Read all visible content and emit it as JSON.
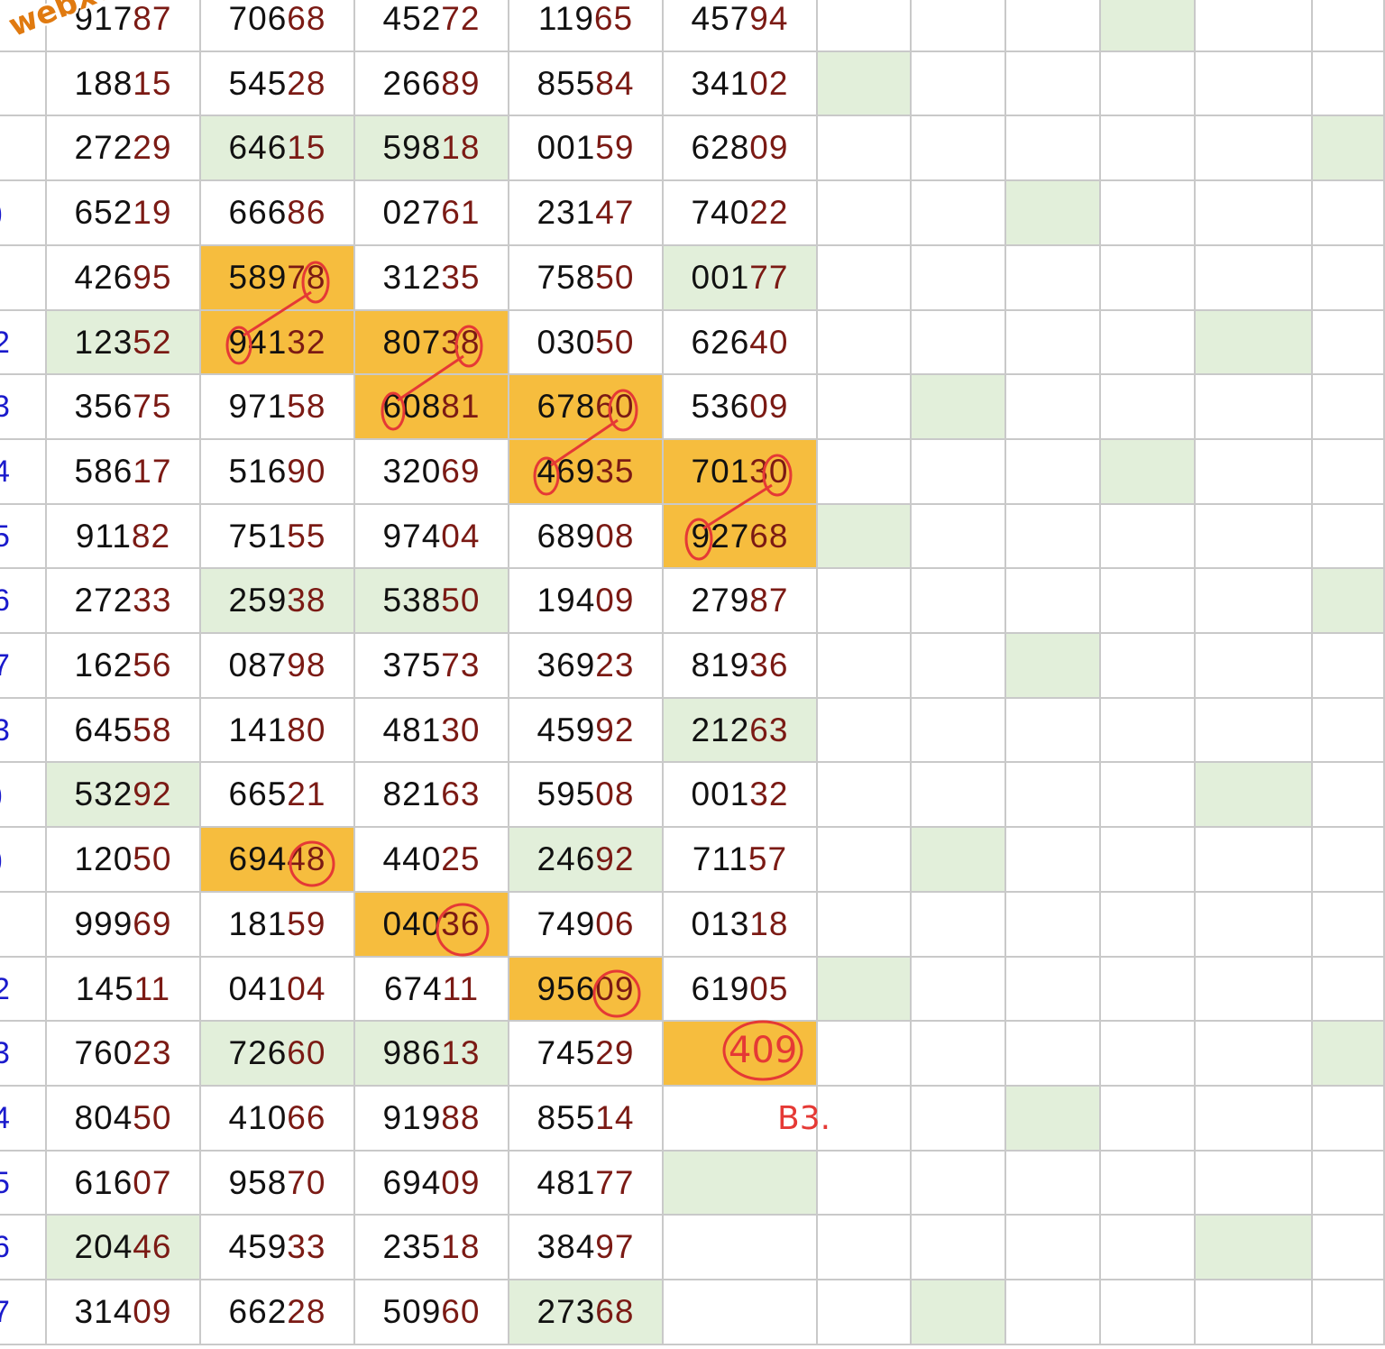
{
  "watermark": "webxoso.net",
  "row_markers": [
    "",
    "",
    "",
    ")",
    "",
    "2",
    "3",
    "4",
    "5",
    "6",
    "7",
    "3",
    ")",
    ")",
    "",
    "2",
    "3",
    "4",
    "5",
    "6",
    "7"
  ],
  "rows": [
    [
      "91787",
      "70668",
      "45272",
      "11965",
      "45794"
    ],
    [
      "18815",
      "54528",
      "26689",
      "85584",
      "34102"
    ],
    [
      "27229",
      "64615",
      "59818",
      "00159",
      "62809"
    ],
    [
      "65219",
      "66686",
      "02761",
      "23147",
      "74022"
    ],
    [
      "42695",
      "58978",
      "31235",
      "75850",
      "00177"
    ],
    [
      "12352",
      "94132",
      "80738",
      "03050",
      "62640"
    ],
    [
      "35675",
      "97158",
      "60881",
      "67860",
      "53609"
    ],
    [
      "58617",
      "51690",
      "32069",
      "46935",
      "70130"
    ],
    [
      "91182",
      "75155",
      "97404",
      "68908",
      "92768"
    ],
    [
      "27233",
      "25938",
      "53850",
      "19409",
      "27987"
    ],
    [
      "16256",
      "08798",
      "37573",
      "36923",
      "81936"
    ],
    [
      "64558",
      "14180",
      "48130",
      "45992",
      "21263"
    ],
    [
      "53292",
      "66521",
      "82163",
      "59508",
      "00132"
    ],
    [
      "12050",
      "69448",
      "44025",
      "24692",
      "71157"
    ],
    [
      "99969",
      "18159",
      "04036",
      "74906",
      "01318"
    ],
    [
      "14511",
      "04104",
      "67411",
      "95609",
      "61905"
    ],
    [
      "76023",
      "72660",
      "98613",
      "74529",
      ""
    ],
    [
      "80450",
      "41066",
      "91988",
      "85514",
      ""
    ],
    [
      "61607",
      "95870",
      "69409",
      "48177",
      ""
    ],
    [
      "20446",
      "45933",
      "23518",
      "38497",
      ""
    ],
    [
      "31409",
      "66228",
      "50960",
      "27368",
      ""
    ]
  ],
  "annotations": {
    "prediction": "409",
    "note": "B3."
  },
  "colors": {
    "highlight_orange": "#f6bd3e",
    "highlight_green": "#e2efda",
    "digits_tail": "#7b1a14",
    "pen_red": "#e53935"
  }
}
